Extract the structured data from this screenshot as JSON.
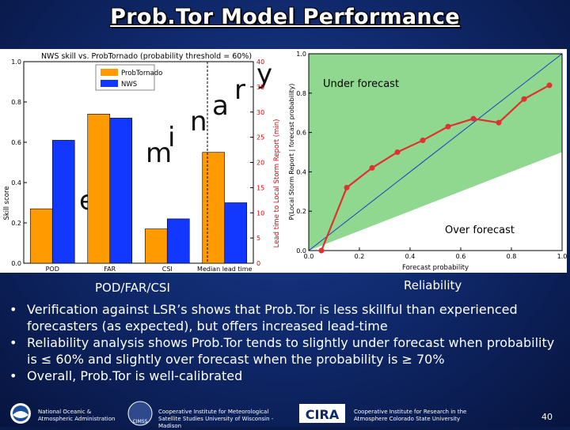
{
  "slide": {
    "title": "Prob.Tor Model Performance",
    "caption_left": "POD/FAR/CSI",
    "caption_right": "Reliability",
    "bullets": [
      "Verification against LSR’s shows that Prob.Tor is less skillful than experienced forecasters (as expected), but offers increased lead-time",
      "Reliability analysis shows Prob.Tor tends to slightly under forecast when probability is ≤ 60% and slightly over forecast when the probability is ≥ 70%",
      "Overall, Prob.Tor is well-calibrated"
    ],
    "footer": {
      "noaa_text": "National Oceanic & Atmospheric Administration",
      "cimss_text": "Cooperative Institute for Meteorological Satellite Studies University of Wisconsin - Madison",
      "cimss_logo_text": "CIMSS",
      "cira_text": "Cooperative Institute for Research in the Atmosphere Colorado State University",
      "cira_logo_text": "CIRA",
      "page_number": "40"
    }
  },
  "chart_data": [
    {
      "type": "bar",
      "title": "NWS skill vs. ProbTornado (probability threshold = 60%)",
      "categories": [
        "POD",
        "FAR",
        "CSI",
        "Median lead time"
      ],
      "series": [
        {
          "name": "ProbTornado",
          "color": "#ff9a00",
          "values": [
            0.27,
            0.74,
            0.17,
            22
          ]
        },
        {
          "name": "NWS",
          "color": "#1238ff",
          "values": [
            0.61,
            0.72,
            0.22,
            12
          ]
        }
      ],
      "ylabel": "Skill score",
      "ylim": [
        0,
        1.0
      ],
      "yticks": [
        "0.0",
        "0.2",
        "0.4",
        "0.6",
        "0.8",
        "1.0"
      ],
      "y2label": "Lead time to Local Storm Report (min)",
      "y2lim": [
        0,
        40
      ],
      "y2ticks": [
        "0",
        "5",
        "10",
        "15",
        "20",
        "25",
        "30",
        "35",
        "40"
      ],
      "watermark": "Preliminary",
      "legend": "top-left"
    },
    {
      "type": "line",
      "title": "",
      "x": [
        0.05,
        0.15,
        0.25,
        0.35,
        0.45,
        0.55,
        0.65,
        0.75,
        0.85,
        0.95
      ],
      "y": [
        0.0,
        0.32,
        0.42,
        0.5,
        0.56,
        0.63,
        0.67,
        0.65,
        0.77,
        0.84
      ],
      "xlabel": "Forecast probability",
      "ylabel": "P(Local Storm Report | forecast probability)",
      "xlim": [
        0,
        1.0
      ],
      "ylim": [
        0,
        1.0
      ],
      "xticks": [
        "0.0",
        "0.2",
        "0.4",
        "0.6",
        "0.8",
        "1.0"
      ],
      "yticks": [
        "0.0",
        "0.2",
        "0.4",
        "0.6",
        "0.8",
        "1.0"
      ],
      "annotations": [
        "Under forecast",
        "Over forecast"
      ],
      "line_color": "#e03030",
      "shade_color": "#90d890"
    }
  ]
}
